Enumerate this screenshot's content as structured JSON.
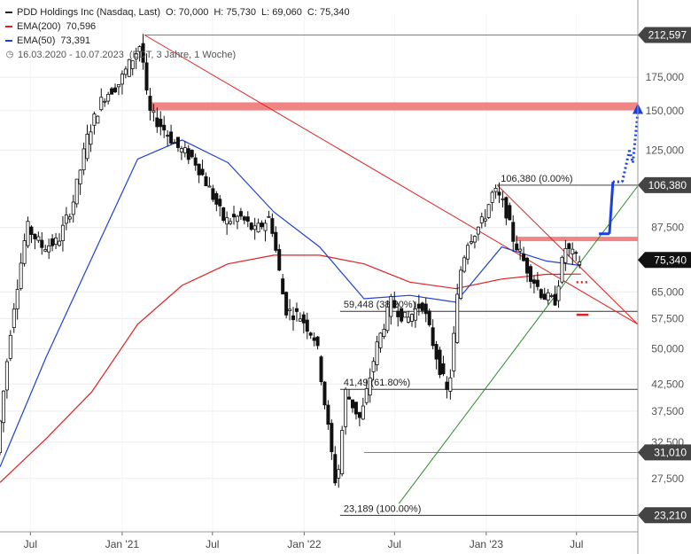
{
  "legend": {
    "instrument": "PDD Holdings Inc (Nasdaq, Last)",
    "open": "O: 70,000",
    "high": "H: 75,730",
    "low": "L: 69,060",
    "close": "C: 75,340",
    "ema200_label": "EMA(200)",
    "ema200_value": "70,596",
    "ema50_label": "EMA(50)",
    "ema50_value": "73,391",
    "range": "16.03.2020 - 10.07.2023",
    "range_note": "(EDT, 3 Jahre, 1 Woche)",
    "clock_icon": "clock-icon",
    "colors": {
      "ema200": "#e02020",
      "ema50": "#2040d0"
    }
  },
  "chart_data": {
    "type": "candlestick",
    "y_scale": "log",
    "ylim": [
      21.5,
      235
    ],
    "xlim": [
      "2020-05-01",
      "2023-11-01"
    ],
    "x_ticks": [
      {
        "date": "2020-07-01",
        "label": "Jul"
      },
      {
        "date": "2021-01-01",
        "label": "Jan '21"
      },
      {
        "date": "2021-07-01",
        "label": "Jul"
      },
      {
        "date": "2022-01-01",
        "label": "Jan '22"
      },
      {
        "date": "2022-07-01",
        "label": "Jul"
      },
      {
        "date": "2023-01-01",
        "label": "Jan '23"
      },
      {
        "date": "2023-07-01",
        "label": "Jul"
      }
    ],
    "y_ticks": [
      {
        "value": 175,
        "label": "175,000"
      },
      {
        "value": 150,
        "label": "150,000"
      },
      {
        "value": 125,
        "label": "125,000"
      },
      {
        "value": 87.5,
        "label": "87,500"
      },
      {
        "value": 65,
        "label": "65,000"
      },
      {
        "value": 57.5,
        "label": "57,500"
      },
      {
        "value": 50,
        "label": "50,000"
      },
      {
        "value": 42.5,
        "label": "42,500"
      },
      {
        "value": 37.5,
        "label": "37,500"
      },
      {
        "value": 32.5,
        "label": "32,500"
      },
      {
        "value": 27.5,
        "label": "27,500"
      }
    ],
    "price_markers": [
      {
        "value": 212.597,
        "label": "212,597",
        "date": "2021-02-15"
      },
      {
        "value": 106.38,
        "label": "106,380",
        "date": "2023-01-23"
      },
      {
        "value": 75.34,
        "label": "75,340",
        "current": true
      },
      {
        "value": 31.01,
        "label": "31,010",
        "date": "2022-05-01"
      },
      {
        "value": 23.21,
        "label": "23,210",
        "date": "2022-03-14"
      }
    ],
    "fibonacci": [
      {
        "value": 106.38,
        "label": "106,380 (0.00%)",
        "from": "2023-01-23"
      },
      {
        "value": 59.448,
        "label": "59,448 (38.20%)",
        "from": "2022-03-14"
      },
      {
        "value": 41.49,
        "label": "41,49 (61.80%)",
        "from": "2022-03-14"
      },
      {
        "value": 23.189,
        "label": "23,189 (100.00%)",
        "from": "2022-03-14"
      }
    ],
    "resistance_zones": [
      {
        "value": 153,
        "from": "2021-03-01",
        "to": "2023-11-01"
      },
      {
        "value": 83,
        "from": "2023-03-01",
        "to": "2023-11-01"
      }
    ],
    "trendlines": [
      {
        "color": "#e02020",
        "p1": [
          "2021-02-15",
          212.6
        ],
        "p2": [
          "2023-11-01",
          56
        ]
      },
      {
        "color": "#e02020",
        "p1": [
          "2023-01-23",
          106.4
        ],
        "p2": [
          "2023-11-01",
          56
        ]
      },
      {
        "color": "#2a8a2a",
        "p1": [
          "2022-07-10",
          24.5
        ],
        "p2": [
          "2023-11-01",
          106
        ]
      }
    ],
    "forecast_path": [
      [
        "2023-08-15",
        85
      ],
      [
        "2023-09-05",
        85
      ],
      [
        "2023-09-12",
        108
      ],
      [
        "2023-10-01",
        108
      ],
      [
        "2023-10-15",
        125
      ],
      [
        "2023-10-22",
        118
      ],
      [
        "2023-11-01",
        149
      ]
    ],
    "stop_markers": [
      {
        "value": 68,
        "from": "2023-07-01",
        "to": "2023-07-25",
        "style": "dotted"
      },
      {
        "value": 58.5,
        "from": "2023-07-01",
        "to": "2023-07-25",
        "style": "solid"
      }
    ],
    "ema200": [
      [
        "2020-05-01",
        27
      ],
      [
        "2020-08-01",
        33
      ],
      [
        "2020-11-01",
        41
      ],
      [
        "2021-02-01",
        56
      ],
      [
        "2021-05-01",
        67
      ],
      [
        "2021-08-01",
        74
      ],
      [
        "2021-11-01",
        77
      ],
      [
        "2022-02-01",
        77
      ],
      [
        "2022-05-01",
        74
      ],
      [
        "2022-08-01",
        68
      ],
      [
        "2022-11-01",
        66
      ],
      [
        "2023-02-01",
        69
      ],
      [
        "2023-05-01",
        70.5
      ],
      [
        "2023-07-10",
        70.6
      ]
    ],
    "ema50": [
      [
        "2020-05-01",
        29
      ],
      [
        "2020-08-01",
        48
      ],
      [
        "2020-11-01",
        76
      ],
      [
        "2021-02-01",
        120
      ],
      [
        "2021-05-01",
        131
      ],
      [
        "2021-08-01",
        118
      ],
      [
        "2021-11-01",
        94
      ],
      [
        "2022-02-01",
        80
      ],
      [
        "2022-05-01",
        63
      ],
      [
        "2022-08-01",
        64
      ],
      [
        "2022-11-01",
        62
      ],
      [
        "2023-02-01",
        80
      ],
      [
        "2023-05-01",
        75
      ],
      [
        "2023-07-10",
        73.4
      ]
    ],
    "price_path": [
      [
        "2020-05-01",
        31
      ],
      [
        "2020-06-01",
        58
      ],
      [
        "2020-07-01",
        88
      ],
      [
        "2020-08-01",
        80
      ],
      [
        "2020-09-01",
        82
      ],
      [
        "2020-10-01",
        98
      ],
      [
        "2020-11-01",
        135
      ],
      [
        "2020-12-01",
        160
      ],
      [
        "2021-01-01",
        170
      ],
      [
        "2021-02-15",
        205
      ],
      [
        "2021-03-01",
        150
      ],
      [
        "2021-04-01",
        138
      ],
      [
        "2021-05-01",
        126
      ],
      [
        "2021-06-01",
        120
      ],
      [
        "2021-07-01",
        105
      ],
      [
        "2021-08-01",
        90
      ],
      [
        "2021-09-01",
        92
      ],
      [
        "2021-10-01",
        86
      ],
      [
        "2021-11-01",
        92
      ],
      [
        "2021-12-01",
        60
      ],
      [
        "2022-01-01",
        58
      ],
      [
        "2022-02-01",
        52
      ],
      [
        "2022-03-14",
        26
      ],
      [
        "2022-04-01",
        41
      ],
      [
        "2022-05-01",
        36
      ],
      [
        "2022-06-01",
        50
      ],
      [
        "2022-07-01",
        62
      ],
      [
        "2022-08-01",
        57
      ],
      [
        "2022-09-01",
        62
      ],
      [
        "2022-10-01",
        48
      ],
      [
        "2022-10-24",
        40
      ],
      [
        "2022-11-15",
        70
      ],
      [
        "2022-12-01",
        82
      ],
      [
        "2023-01-01",
        90
      ],
      [
        "2023-01-23",
        104
      ],
      [
        "2023-02-15",
        96
      ],
      [
        "2023-03-01",
        84
      ],
      [
        "2023-04-01",
        72
      ],
      [
        "2023-05-01",
        64
      ],
      [
        "2023-05-25",
        62
      ],
      [
        "2023-06-15",
        80
      ],
      [
        "2023-07-10",
        75.34
      ]
    ]
  }
}
